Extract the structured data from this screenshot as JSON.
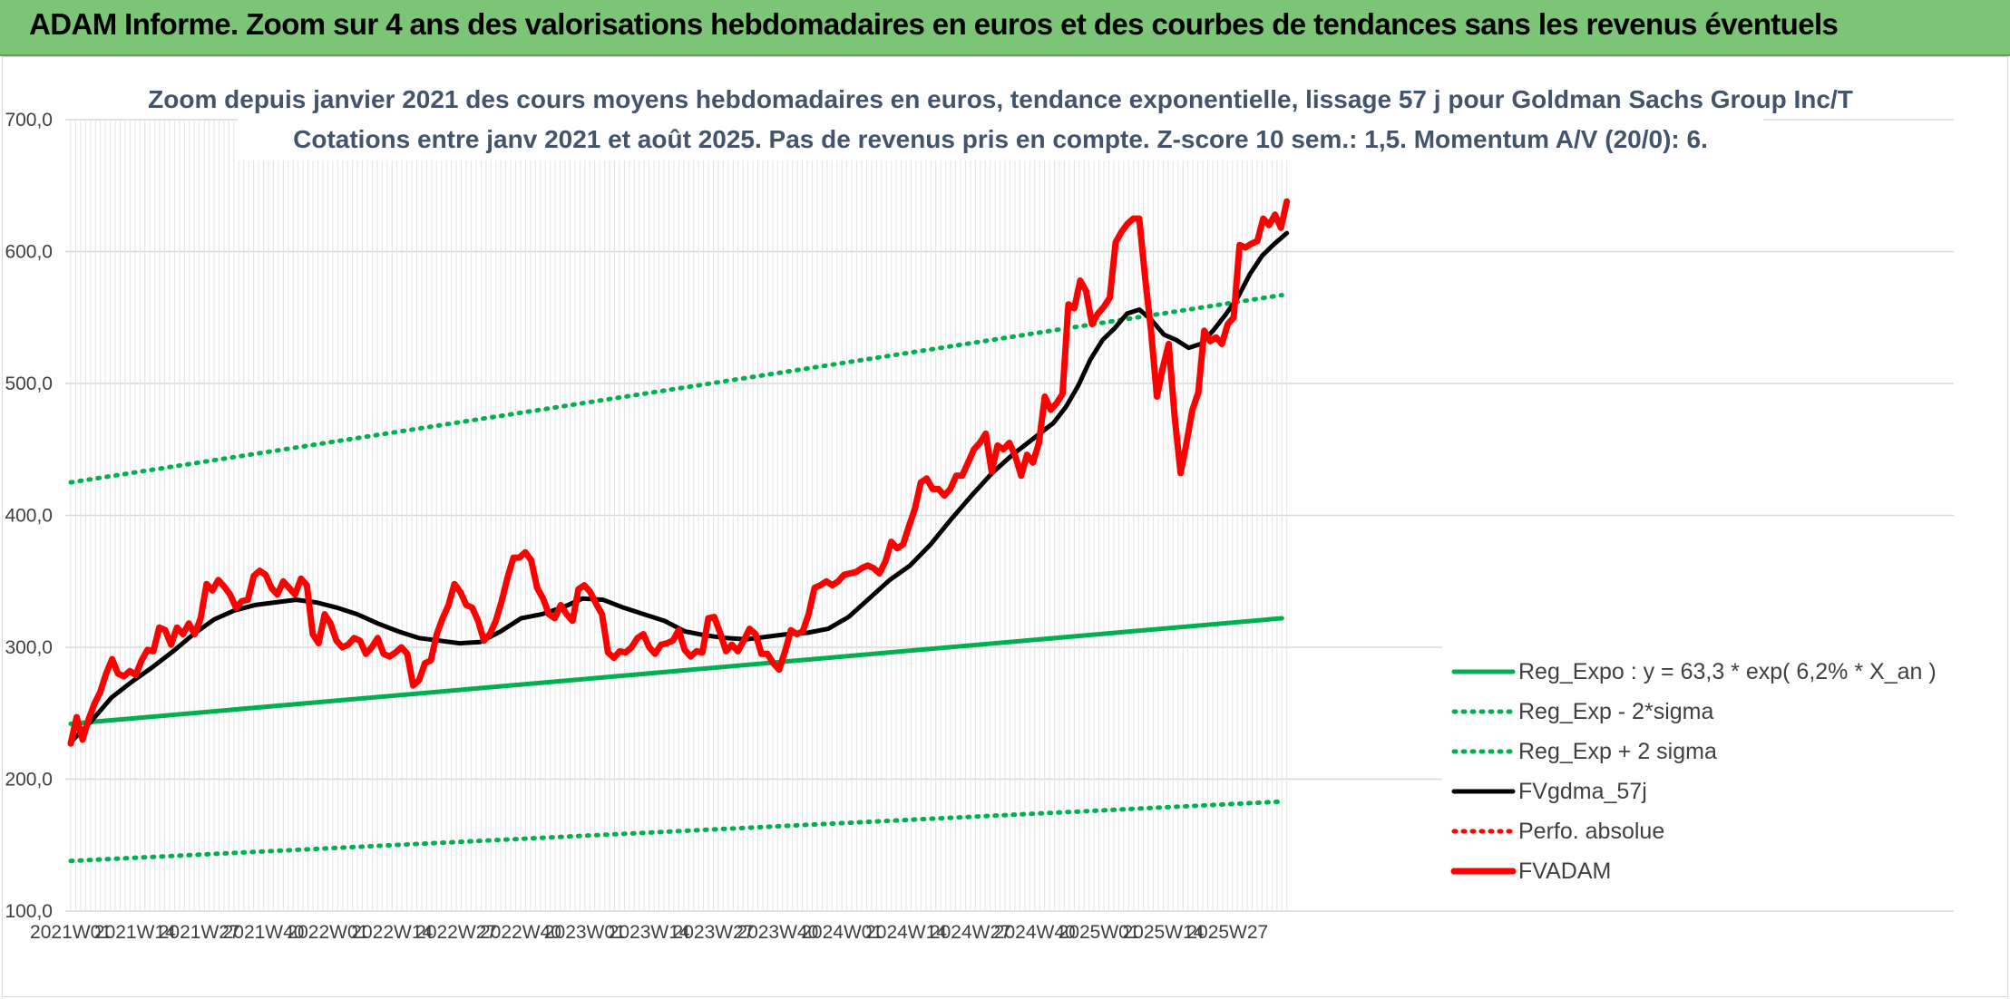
{
  "banner": {
    "title": "ADAM Informe. Zoom sur 4 ans des valorisations hebdomadaires en euros et des courbes de tendances sans les revenus éventuels"
  },
  "chart_data": {
    "type": "line",
    "title": "Zoom depuis janvier 2021 des cours moyens hebdomadaires en euros, tendance exponentielle, lissage 57 j pour Goldman Sachs Group Inc/T",
    "subtitle": "Cotations entre janv 2021 et août 2025. Pas de revenus pris en compte. Z-score 10 sem.: 1,5. Momentum A/V (20/0): 6.",
    "ylim": [
      100,
      700
    ],
    "y_ticks": [
      "100,0",
      "200,0",
      "300,0",
      "400,0",
      "500,0",
      "600,0",
      "700,0"
    ],
    "x_tick_labels": [
      "2021W01",
      "2021W14",
      "2021W27",
      "2021W40",
      "2022W01",
      "2022W14",
      "2022W27",
      "2022W40",
      "2023W01",
      "2023W14",
      "2023W27",
      "2023W40",
      "2024W01",
      "2024W14",
      "2024W27",
      "2024W40",
      "2025W01",
      "2025W14",
      "2025W27"
    ],
    "weeks_between_ticks": 13,
    "total_weeks": 246,
    "grid": true,
    "legend_position": "bottom-right",
    "series": [
      {
        "name": "Reg_Expo : y = 63,3 * exp( 6,2% *  X_an )",
        "color": "#00b050",
        "style": "solid",
        "weight": "medium",
        "points": [
          [
            0,
            242
          ],
          [
            245,
            322
          ]
        ]
      },
      {
        "name": "Reg_Exp - 2*sigma",
        "color": "#00b050",
        "style": "dotted",
        "points": [
          [
            0,
            138
          ],
          [
            245,
            183
          ]
        ]
      },
      {
        "name": "Reg_Exp + 2 sigma",
        "color": "#00b050",
        "style": "dotted",
        "points": [
          [
            0,
            425
          ],
          [
            245,
            567
          ]
        ]
      },
      {
        "name": "FVgdma_57j",
        "color": "#000000",
        "style": "solid",
        "weight": "medium",
        "points": [
          [
            0,
            228
          ],
          [
            5,
            244
          ],
          [
            10,
            262
          ],
          [
            15,
            274
          ],
          [
            20,
            285
          ],
          [
            25,
            297
          ],
          [
            30,
            310
          ],
          [
            35,
            321
          ],
          [
            40,
            328
          ],
          [
            45,
            332
          ],
          [
            50,
            334
          ],
          [
            55,
            336
          ],
          [
            60,
            334
          ],
          [
            65,
            330
          ],
          [
            70,
            325
          ],
          [
            75,
            318
          ],
          [
            80,
            312
          ],
          [
            85,
            307
          ],
          [
            90,
            305
          ],
          [
            95,
            303
          ],
          [
            100,
            304
          ],
          [
            105,
            312
          ],
          [
            110,
            322
          ],
          [
            115,
            325
          ],
          [
            120,
            330
          ],
          [
            125,
            337
          ],
          [
            130,
            336
          ],
          [
            135,
            330
          ],
          [
            140,
            325
          ],
          [
            145,
            320
          ],
          [
            150,
            312
          ],
          [
            155,
            309
          ],
          [
            160,
            307
          ],
          [
            165,
            306
          ],
          [
            170,
            308
          ],
          [
            175,
            310
          ],
          [
            180,
            311
          ],
          [
            185,
            314
          ],
          [
            190,
            323
          ],
          [
            195,
            337
          ],
          [
            200,
            351
          ],
          [
            205,
            362
          ],
          [
            210,
            378
          ],
          [
            215,
            397
          ],
          [
            220,
            415
          ],
          [
            225,
            432
          ],
          [
            230,
            446
          ],
          [
            235,
            458
          ],
          [
            240,
            470
          ],
          [
            243,
            482
          ],
          [
            246,
            498
          ],
          [
            249,
            518
          ],
          [
            252,
            533
          ],
          [
            255,
            542
          ],
          [
            258,
            553
          ],
          [
            261,
            556
          ],
          [
            264,
            548
          ],
          [
            267,
            537
          ],
          [
            270,
            533
          ],
          [
            273,
            527
          ],
          [
            276,
            530
          ],
          [
            279,
            540
          ],
          [
            282,
            552
          ],
          [
            285,
            565
          ],
          [
            288,
            583
          ],
          [
            291,
            597
          ],
          [
            294,
            606
          ],
          [
            297,
            614
          ]
        ]
      },
      {
        "name": "Perfo. absolue",
        "color": "#ff0000",
        "style": "dotted",
        "points": []
      },
      {
        "name": "FVADAM",
        "color": "#ff0000",
        "style": "solid",
        "weight": "heavy",
        "points": [
          [
            0,
            227
          ],
          [
            2,
            247
          ],
          [
            4,
            230
          ],
          [
            6,
            245
          ],
          [
            8,
            257
          ],
          [
            10,
            266
          ],
          [
            12,
            280
          ],
          [
            14,
            291
          ],
          [
            16,
            280
          ],
          [
            18,
            278
          ],
          [
            20,
            282
          ],
          [
            22,
            279
          ],
          [
            24,
            290
          ],
          [
            26,
            298
          ],
          [
            28,
            297
          ],
          [
            30,
            315
          ],
          [
            32,
            313
          ],
          [
            34,
            302
          ],
          [
            36,
            315
          ],
          [
            38,
            310
          ],
          [
            40,
            318
          ],
          [
            42,
            310
          ],
          [
            44,
            322
          ],
          [
            46,
            348
          ],
          [
            48,
            343
          ],
          [
            50,
            351
          ],
          [
            52,
            346
          ],
          [
            54,
            340
          ],
          [
            56,
            330
          ],
          [
            58,
            335
          ],
          [
            60,
            336
          ],
          [
            62,
            354
          ],
          [
            64,
            358
          ],
          [
            66,
            355
          ],
          [
            68,
            345
          ],
          [
            70,
            340
          ],
          [
            72,
            350
          ],
          [
            74,
            345
          ],
          [
            76,
            340
          ],
          [
            78,
            352
          ],
          [
            80,
            347
          ],
          [
            82,
            310
          ],
          [
            84,
            303
          ],
          [
            86,
            325
          ],
          [
            88,
            318
          ],
          [
            90,
            305
          ],
          [
            92,
            300
          ],
          [
            94,
            302
          ],
          [
            96,
            307
          ],
          [
            98,
            305
          ],
          [
            100,
            295
          ],
          [
            102,
            300
          ],
          [
            104,
            307
          ],
          [
            106,
            295
          ],
          [
            108,
            293
          ],
          [
            110,
            296
          ],
          [
            112,
            300
          ],
          [
            114,
            295
          ],
          [
            116,
            271
          ],
          [
            118,
            275
          ],
          [
            120,
            288
          ],
          [
            122,
            290
          ],
          [
            124,
            310
          ],
          [
            126,
            322
          ],
          [
            128,
            332
          ],
          [
            130,
            348
          ],
          [
            132,
            342
          ],
          [
            134,
            332
          ],
          [
            136,
            330
          ],
          [
            138,
            320
          ],
          [
            140,
            305
          ],
          [
            142,
            310
          ],
          [
            144,
            320
          ],
          [
            146,
            335
          ],
          [
            148,
            353
          ],
          [
            150,
            368
          ],
          [
            152,
            368
          ],
          [
            154,
            372
          ],
          [
            156,
            366
          ],
          [
            158,
            345
          ],
          [
            160,
            337
          ],
          [
            162,
            325
          ],
          [
            164,
            322
          ],
          [
            166,
            332
          ],
          [
            168,
            325
          ],
          [
            170,
            320
          ],
          [
            172,
            344
          ],
          [
            174,
            347
          ],
          [
            176,
            342
          ],
          [
            178,
            333
          ],
          [
            180,
            325
          ],
          [
            182,
            296
          ],
          [
            184,
            292
          ],
          [
            186,
            297
          ],
          [
            188,
            296
          ],
          [
            190,
            300
          ],
          [
            192,
            307
          ],
          [
            194,
            310
          ],
          [
            196,
            300
          ],
          [
            198,
            295
          ],
          [
            200,
            302
          ],
          [
            202,
            303
          ],
          [
            204,
            305
          ],
          [
            206,
            313
          ],
          [
            208,
            298
          ],
          [
            210,
            293
          ],
          [
            212,
            297
          ],
          [
            214,
            296
          ],
          [
            216,
            322
          ],
          [
            218,
            323
          ],
          [
            220,
            311
          ],
          [
            222,
            297
          ],
          [
            224,
            302
          ],
          [
            226,
            297
          ],
          [
            228,
            305
          ],
          [
            230,
            314
          ],
          [
            232,
            310
          ],
          [
            234,
            295
          ],
          [
            236,
            295
          ],
          [
            238,
            288
          ],
          [
            240,
            283
          ],
          [
            242,
            297
          ],
          [
            244,
            313
          ],
          [
            246,
            310
          ],
          [
            248,
            312
          ],
          [
            250,
            325
          ],
          [
            252,
            345
          ],
          [
            254,
            347
          ],
          [
            256,
            350
          ],
          [
            258,
            347
          ],
          [
            260,
            350
          ],
          [
            262,
            355
          ],
          [
            264,
            356
          ],
          [
            266,
            357
          ],
          [
            268,
            360
          ],
          [
            270,
            362
          ],
          [
            272,
            360
          ],
          [
            274,
            356
          ],
          [
            276,
            365
          ],
          [
            278,
            380
          ],
          [
            280,
            375
          ],
          [
            282,
            378
          ],
          [
            284,
            392
          ],
          [
            286,
            405
          ],
          [
            288,
            425
          ],
          [
            290,
            428
          ],
          [
            292,
            420
          ],
          [
            294,
            420
          ],
          [
            296,
            415
          ],
          [
            298,
            420
          ],
          [
            300,
            430
          ],
          [
            302,
            430
          ],
          [
            304,
            440
          ],
          [
            306,
            450
          ],
          [
            308,
            455
          ],
          [
            310,
            462
          ],
          [
            312,
            433
          ],
          [
            314,
            453
          ],
          [
            316,
            450
          ],
          [
            318,
            455
          ],
          [
            320,
            445
          ],
          [
            322,
            430
          ],
          [
            324,
            446
          ],
          [
            326,
            440
          ],
          [
            328,
            455
          ],
          [
            330,
            490
          ],
          [
            332,
            480
          ],
          [
            334,
            485
          ],
          [
            336,
            492
          ],
          [
            338,
            560
          ],
          [
            340,
            557
          ],
          [
            342,
            578
          ],
          [
            344,
            570
          ],
          [
            346,
            545
          ],
          [
            348,
            553
          ],
          [
            350,
            558
          ],
          [
            352,
            565
          ],
          [
            354,
            607
          ],
          [
            356,
            615
          ],
          [
            358,
            621
          ],
          [
            360,
            625
          ],
          [
            362,
            625
          ],
          [
            364,
            580
          ],
          [
            366,
            540
          ],
          [
            368,
            490
          ],
          [
            370,
            512
          ],
          [
            372,
            530
          ],
          [
            374,
            475
          ],
          [
            376,
            432
          ],
          [
            378,
            455
          ],
          [
            380,
            480
          ],
          [
            382,
            493
          ],
          [
            384,
            540
          ],
          [
            386,
            532
          ],
          [
            388,
            535
          ],
          [
            390,
            530
          ],
          [
            392,
            545
          ],
          [
            394,
            550
          ],
          [
            396,
            605
          ],
          [
            398,
            603
          ],
          [
            400,
            606
          ],
          [
            402,
            608
          ],
          [
            404,
            625
          ],
          [
            406,
            620
          ],
          [
            408,
            628
          ],
          [
            410,
            618
          ],
          [
            412,
            638
          ]
        ]
      }
    ]
  }
}
